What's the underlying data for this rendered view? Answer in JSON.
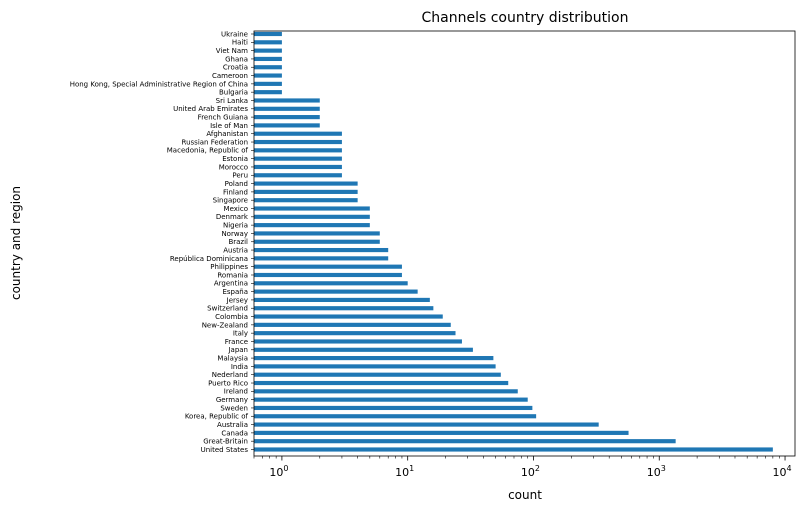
{
  "chart_data": {
    "type": "bar",
    "orientation": "horizontal",
    "title": "Channels country distribution",
    "xlabel": "count",
    "ylabel": "country and region",
    "xscale": "log",
    "xlim": [
      0.6,
      12000
    ],
    "grid": false,
    "bar_color": "#1f77b4",
    "categories": [
      "Ukraine",
      "Haiti",
      "Viet Nam",
      "Ghana",
      "Croatia",
      "Cameroon",
      "Hong Kong, Special Administrative Region of China",
      "Bulgaria",
      "Sri Lanka",
      "United Arab Emirates",
      "French Guiana",
      "Isle of Man",
      "Afghanistan",
      "Russian Federation",
      "Macedonia, Republic of",
      "Estonia",
      "Morocco",
      "Peru",
      "Poland",
      "Finland",
      "Singapore",
      "Mexico",
      "Denmark",
      "Nigeria",
      "Norway",
      "Brazil",
      "Austria",
      "República Dominicana",
      "Philippines",
      "Romania",
      "Argentina",
      "España",
      "Jersey",
      "Switzerland",
      "Colombia",
      "New-Zealand",
      "Italy",
      "France",
      "Japan",
      "Malaysia",
      "India",
      "Nederland",
      "Puerto Rico",
      "Ireland",
      "Germany",
      "Sweden",
      "Korea, Republic of",
      "Australia",
      "Canada",
      "Great-Britain",
      "United States"
    ],
    "values": [
      1,
      1,
      1,
      1,
      1,
      1,
      1,
      1,
      2,
      2,
      2,
      2,
      3,
      3,
      3,
      3,
      3,
      3,
      4,
      4,
      4,
      5,
      5,
      5,
      6,
      6,
      7,
      7,
      9,
      9,
      10,
      12,
      15,
      16,
      19,
      22,
      24,
      27,
      33,
      48,
      50,
      55,
      63,
      75,
      90,
      98,
      105,
      330,
      570,
      1350,
      8000
    ],
    "x_ticks": [
      {
        "value": 1,
        "base": "10",
        "exp": "0"
      },
      {
        "value": 10,
        "base": "10",
        "exp": "1"
      },
      {
        "value": 100,
        "base": "10",
        "exp": "2"
      },
      {
        "value": 1000,
        "base": "10",
        "exp": "3"
      },
      {
        "value": 10000,
        "base": "10",
        "exp": "4"
      }
    ]
  }
}
